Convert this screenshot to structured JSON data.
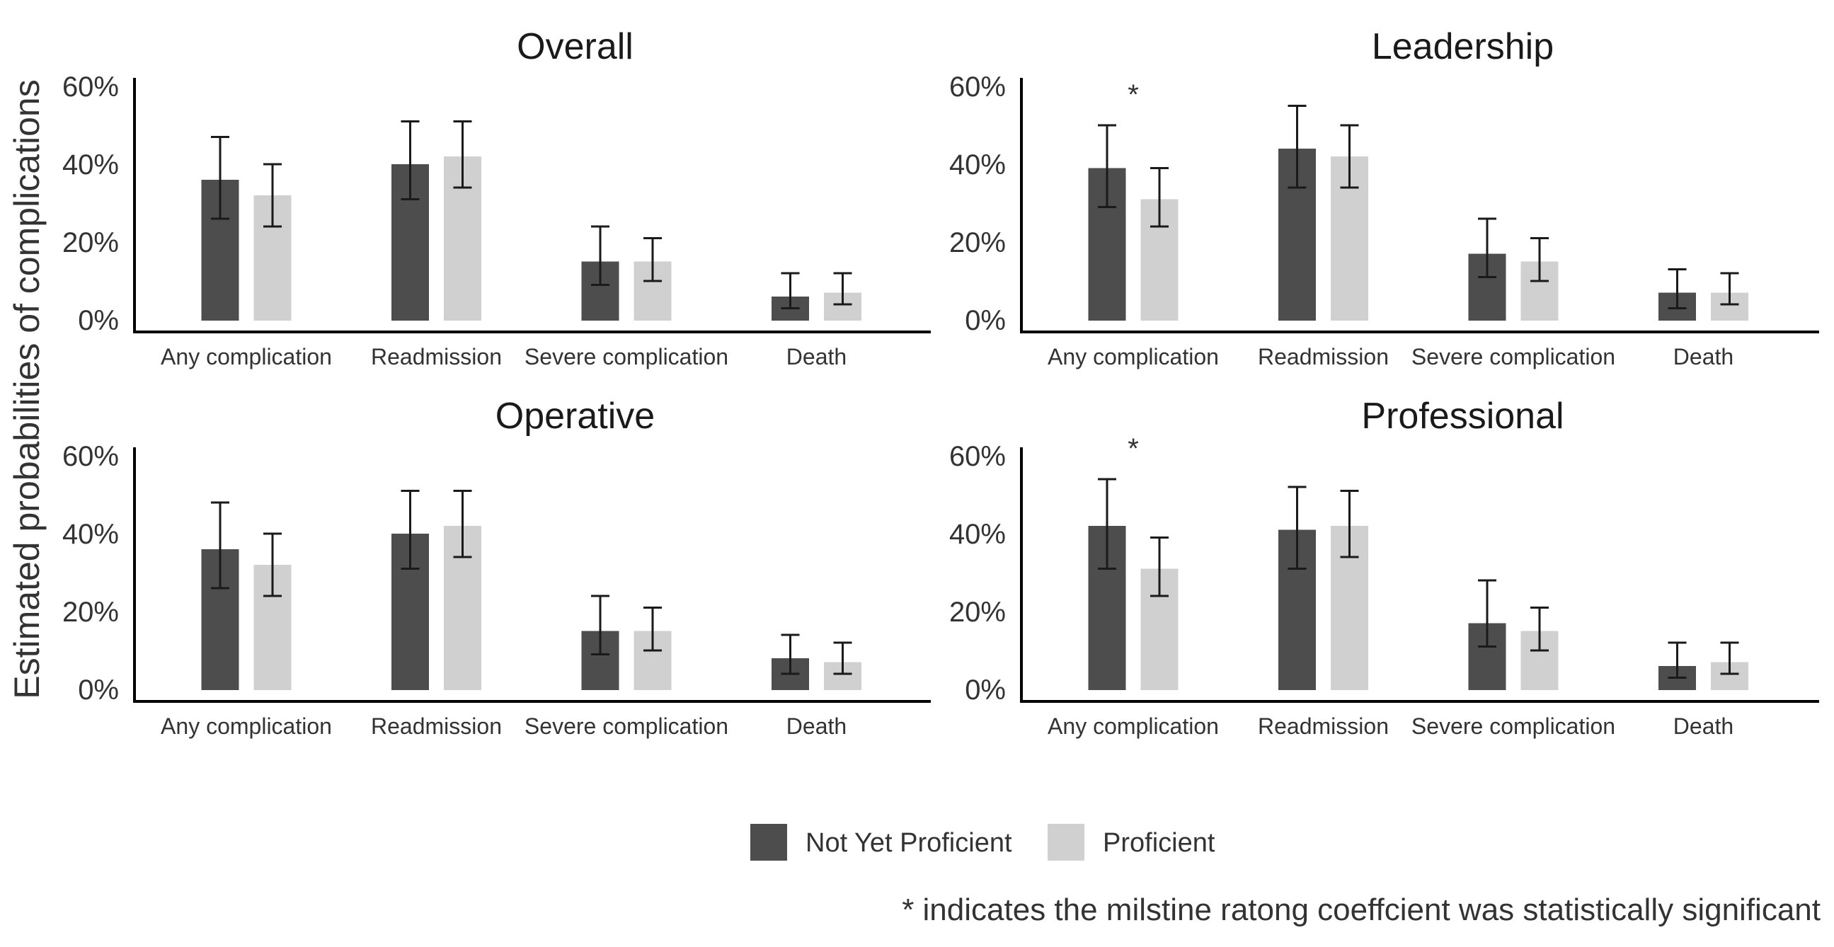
{
  "chart_data": {
    "type": "bar",
    "ylabel": "Estimated probabilities of complications",
    "ylim": [
      0,
      0.62
    ],
    "yticks": [
      0,
      0.2,
      0.4,
      0.6
    ],
    "ytick_labels": [
      "0%",
      "20%",
      "40%",
      "60%"
    ],
    "categories": [
      "Any complication",
      "Readmission",
      "Severe complication",
      "Death"
    ],
    "series_names": [
      "Not Yet Proficient",
      "Proficient"
    ],
    "colors": {
      "Not Yet Proficient": "#4d4d4d",
      "Proficient": "#d0d0d0"
    },
    "legend_position": "bottom",
    "footnote": "* indicates the milstine ratong coeffcient was statistically significant",
    "panels": [
      {
        "title": "Overall",
        "series": [
          {
            "name": "Not Yet Proficient",
            "values": [
              0.36,
              0.4,
              0.15,
              0.06
            ],
            "lower": [
              0.26,
              0.31,
              0.09,
              0.03
            ],
            "upper": [
              0.47,
              0.51,
              0.24,
              0.12
            ]
          },
          {
            "name": "Proficient",
            "values": [
              0.32,
              0.42,
              0.15,
              0.07
            ],
            "lower": [
              0.24,
              0.34,
              0.1,
              0.04
            ],
            "upper": [
              0.4,
              0.51,
              0.21,
              0.12
            ]
          }
        ],
        "significant": []
      },
      {
        "title": "Leadership",
        "series": [
          {
            "name": "Not Yet Proficient",
            "values": [
              0.39,
              0.44,
              0.17,
              0.07
            ],
            "lower": [
              0.29,
              0.34,
              0.11,
              0.03
            ],
            "upper": [
              0.5,
              0.55,
              0.26,
              0.13
            ]
          },
          {
            "name": "Proficient",
            "values": [
              0.31,
              0.42,
              0.15,
              0.07
            ],
            "lower": [
              0.24,
              0.34,
              0.1,
              0.04
            ],
            "upper": [
              0.39,
              0.5,
              0.21,
              0.12
            ]
          }
        ],
        "significant": [
          "Any complication"
        ]
      },
      {
        "title": "Operative",
        "series": [
          {
            "name": "Not Yet Proficient",
            "values": [
              0.36,
              0.4,
              0.15,
              0.08
            ],
            "lower": [
              0.26,
              0.31,
              0.09,
              0.04
            ],
            "upper": [
              0.48,
              0.51,
              0.24,
              0.14
            ]
          },
          {
            "name": "Proficient",
            "values": [
              0.32,
              0.42,
              0.15,
              0.07
            ],
            "lower": [
              0.24,
              0.34,
              0.1,
              0.04
            ],
            "upper": [
              0.4,
              0.51,
              0.21,
              0.12
            ]
          }
        ],
        "significant": []
      },
      {
        "title": "Professional",
        "series": [
          {
            "name": "Not Yet Proficient",
            "values": [
              0.42,
              0.41,
              0.17,
              0.06
            ],
            "lower": [
              0.31,
              0.31,
              0.11,
              0.03
            ],
            "upper": [
              0.54,
              0.52,
              0.28,
              0.12
            ]
          },
          {
            "name": "Proficient",
            "values": [
              0.31,
              0.42,
              0.15,
              0.07
            ],
            "lower": [
              0.24,
              0.34,
              0.1,
              0.04
            ],
            "upper": [
              0.39,
              0.51,
              0.21,
              0.12
            ]
          }
        ],
        "significant": [
          "Any complication"
        ]
      }
    ]
  }
}
